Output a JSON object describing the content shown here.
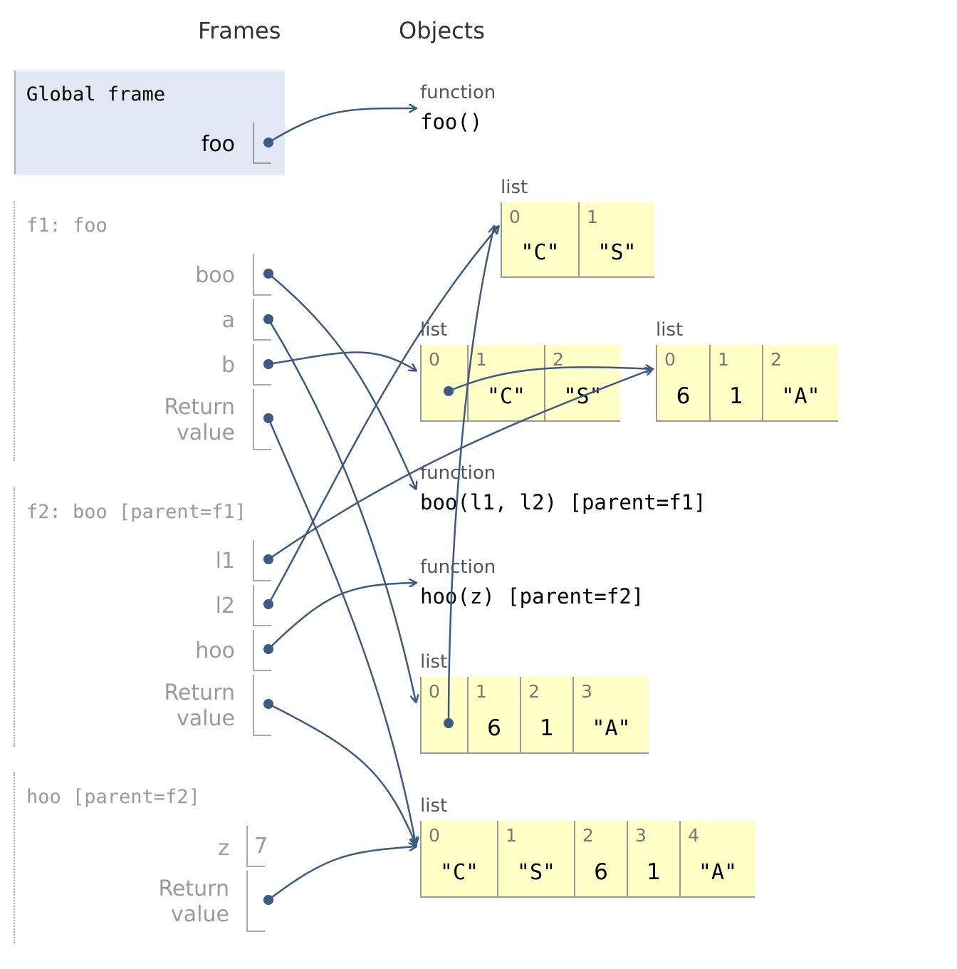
{
  "headers": {
    "frames": "Frames",
    "objects": "Objects"
  },
  "frames": [
    {
      "id": "global",
      "title": "Global frame",
      "vars": [
        {
          "name": "foo"
        }
      ]
    },
    {
      "id": "f1",
      "title": "f1: foo",
      "vars": [
        {
          "name": "boo"
        },
        {
          "name": "a"
        },
        {
          "name": "b"
        },
        {
          "name": "Return value"
        }
      ]
    },
    {
      "id": "f2",
      "title": "f2: boo [parent=f1]",
      "vars": [
        {
          "name": "l1"
        },
        {
          "name": "l2"
        },
        {
          "name": "hoo"
        },
        {
          "name": "Return value"
        }
      ]
    },
    {
      "id": "hoo",
      "title": "hoo [parent=f2]",
      "vars": [
        {
          "name": "z",
          "value": "7"
        },
        {
          "name": "Return value"
        }
      ]
    }
  ],
  "objects": {
    "fn_foo": {
      "type": "function",
      "signature": "foo()"
    },
    "fn_boo": {
      "type": "function",
      "signature": "boo(l1, l2) [parent=f1]"
    },
    "fn_hoo": {
      "type": "function",
      "signature": "hoo(z) [parent=f2]"
    },
    "list_cs": {
      "type": "list",
      "items": [
        {
          "index": "0",
          "value": "\"C\""
        },
        {
          "index": "1",
          "value": "\"S\""
        }
      ]
    },
    "list_a": {
      "type": "list",
      "items": [
        {
          "index": "0",
          "value": ""
        },
        {
          "index": "1",
          "value": "\"C\""
        },
        {
          "index": "2",
          "value": "\"S\""
        }
      ]
    },
    "list_61a": {
      "type": "list",
      "items": [
        {
          "index": "0",
          "value": "6"
        },
        {
          "index": "1",
          "value": "1"
        },
        {
          "index": "2",
          "value": "\"A\""
        }
      ]
    },
    "list_b": {
      "type": "list",
      "items": [
        {
          "index": "0",
          "value": ""
        },
        {
          "index": "1",
          "value": "6"
        },
        {
          "index": "2",
          "value": "1"
        },
        {
          "index": "3",
          "value": "\"A\""
        }
      ]
    },
    "list_res": {
      "type": "list",
      "items": [
        {
          "index": "0",
          "value": "\"C\""
        },
        {
          "index": "1",
          "value": "\"S\""
        },
        {
          "index": "2",
          "value": "6"
        },
        {
          "index": "3",
          "value": "1"
        },
        {
          "index": "4",
          "value": "\"A\""
        }
      ]
    }
  },
  "colors": {
    "arrow": "#3d5a85",
    "list_bg": "#ffffc6",
    "global_bg": "#e2e8f3"
  }
}
